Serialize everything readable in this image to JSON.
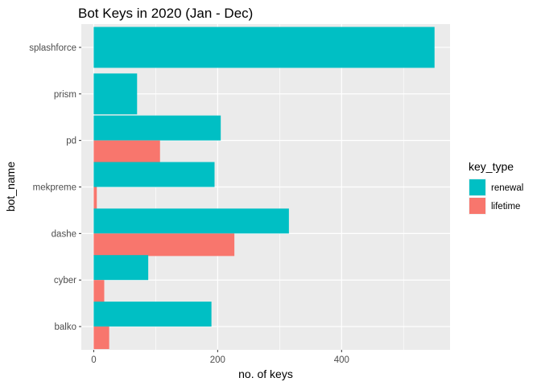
{
  "chart_data": {
    "type": "bar",
    "orientation": "horizontal",
    "title": "Bot Keys in 2020 (Jan - Dec)",
    "xlabel": "no. of keys",
    "ylabel": "bot_name",
    "categories": [
      "splashforce",
      "prism",
      "pd",
      "mekpreme",
      "dashe",
      "cyber",
      "balko"
    ],
    "series": [
      {
        "name": "renewal",
        "color": "#00BFC4",
        "values": [
          550,
          70,
          205,
          195,
          315,
          88,
          190
        ]
      },
      {
        "name": "lifetime",
        "color": "#F8766D",
        "values": [
          null,
          null,
          107,
          5,
          227,
          17,
          25
        ]
      }
    ],
    "xlim": [
      -20,
      575
    ],
    "x_ticks": [
      0,
      200,
      400
    ],
    "x_tick_labels": [
      "0",
      "200",
      "400"
    ],
    "grid": true,
    "panel_background": "#EBEBEB",
    "grid_color": "#FFFFFF",
    "legend": {
      "title": "key_type",
      "placement": "right",
      "items": [
        "renewal",
        "lifetime"
      ]
    }
  }
}
